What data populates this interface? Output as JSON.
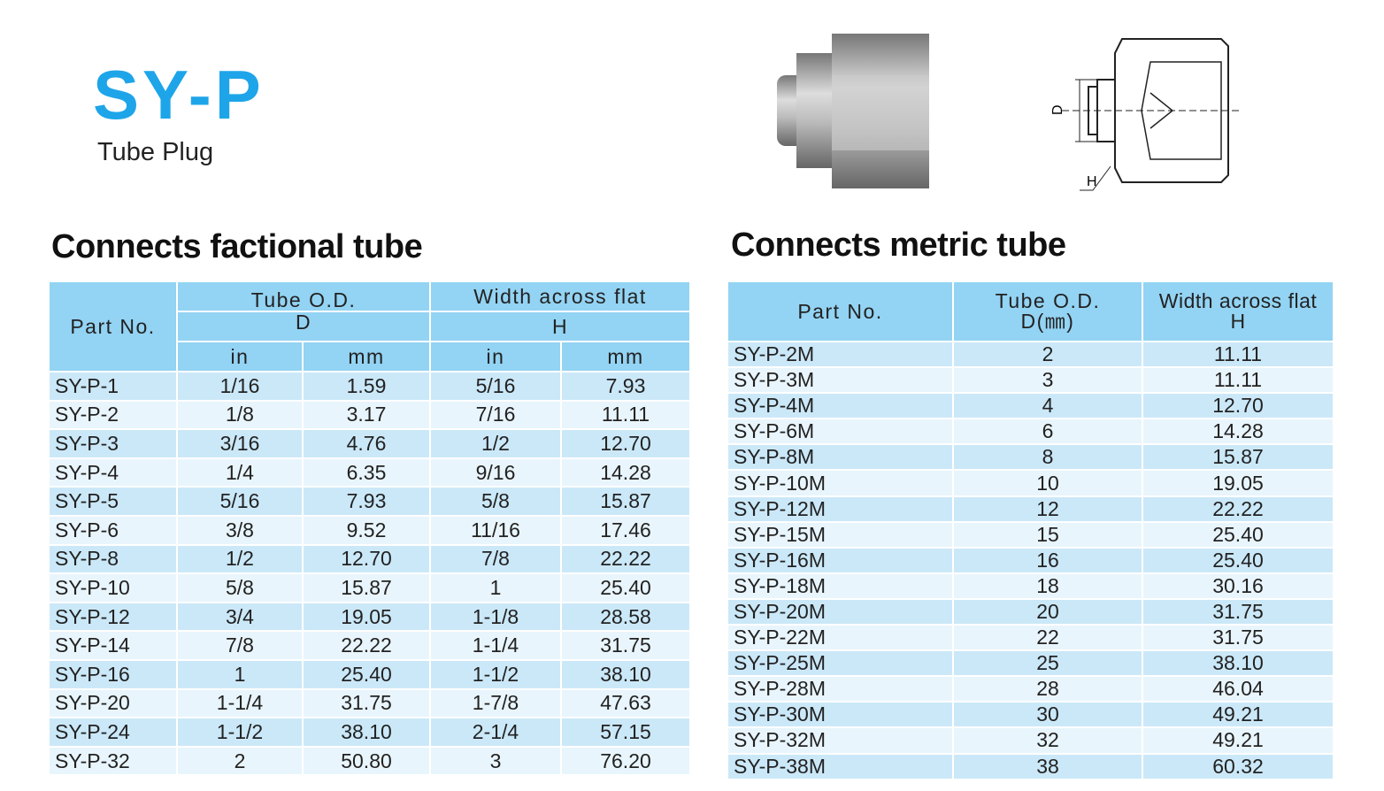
{
  "header": {
    "title": "SY-P",
    "subtitle": "Tube Plug"
  },
  "drawing": {
    "labels": [
      "D",
      "H"
    ]
  },
  "left": {
    "title": "Connects factional tube",
    "headers": {
      "part": "Part No.",
      "tube": "Tube O.D.",
      "tube_sym": "D",
      "width": "Width across flat",
      "width_sym": "H",
      "units": [
        "in",
        "mm",
        "in",
        "mm"
      ]
    },
    "rows": [
      [
        "SY-P-1",
        "1/16",
        "1.59",
        "5/16",
        "7.93"
      ],
      [
        "SY-P-2",
        "1/8",
        "3.17",
        "7/16",
        "11.11"
      ],
      [
        "SY-P-3",
        "3/16",
        "4.76",
        "1/2",
        "12.70"
      ],
      [
        "SY-P-4",
        "1/4",
        "6.35",
        "9/16",
        "14.28"
      ],
      [
        "SY-P-5",
        "5/16",
        "7.93",
        "5/8",
        "15.87"
      ],
      [
        "SY-P-6",
        "3/8",
        "9.52",
        "11/16",
        "17.46"
      ],
      [
        "SY-P-8",
        "1/2",
        "12.70",
        "7/8",
        "22.22"
      ],
      [
        "SY-P-10",
        "5/8",
        "15.87",
        "1",
        "25.40"
      ],
      [
        "SY-P-12",
        "3/4",
        "19.05",
        "1-1/8",
        "28.58"
      ],
      [
        "SY-P-14",
        "7/8",
        "22.22",
        "1-1/4",
        "31.75"
      ],
      [
        "SY-P-16",
        "1",
        "25.40",
        "1-1/2",
        "38.10"
      ],
      [
        "SY-P-20",
        "1-1/4",
        "31.75",
        "1-7/8",
        "47.63"
      ],
      [
        "SY-P-24",
        "1-1/2",
        "38.10",
        "2-1/4",
        "57.15"
      ],
      [
        "SY-P-32",
        "2",
        "50.80",
        "3",
        "76.20"
      ]
    ]
  },
  "right": {
    "title": "Connects metric tube",
    "headers": {
      "part": "Part No.",
      "tube": "Tube O.D.",
      "tube_sym": "D(㎜)",
      "width": "Width across flat",
      "width_sym": "H"
    },
    "rows": [
      [
        "SY-P-2M",
        "2",
        "11.11"
      ],
      [
        "SY-P-3M",
        "3",
        "11.11"
      ],
      [
        "SY-P-4M",
        "4",
        "12.70"
      ],
      [
        "SY-P-6M",
        "6",
        "14.28"
      ],
      [
        "SY-P-8M",
        "8",
        "15.87"
      ],
      [
        "SY-P-10M",
        "10",
        "19.05"
      ],
      [
        "SY-P-12M",
        "12",
        "22.22"
      ],
      [
        "SY-P-15M",
        "15",
        "25.40"
      ],
      [
        "SY-P-16M",
        "16",
        "25.40"
      ],
      [
        "SY-P-18M",
        "18",
        "30.16"
      ],
      [
        "SY-P-20M",
        "20",
        "31.75"
      ],
      [
        "SY-P-22M",
        "22",
        "31.75"
      ],
      [
        "SY-P-25M",
        "25",
        "38.10"
      ],
      [
        "SY-P-28M",
        "28",
        "46.04"
      ],
      [
        "SY-P-30M",
        "30",
        "49.21"
      ],
      [
        "SY-P-32M",
        "32",
        "49.21"
      ],
      [
        "SY-P-38M",
        "38",
        "60.32"
      ]
    ]
  }
}
